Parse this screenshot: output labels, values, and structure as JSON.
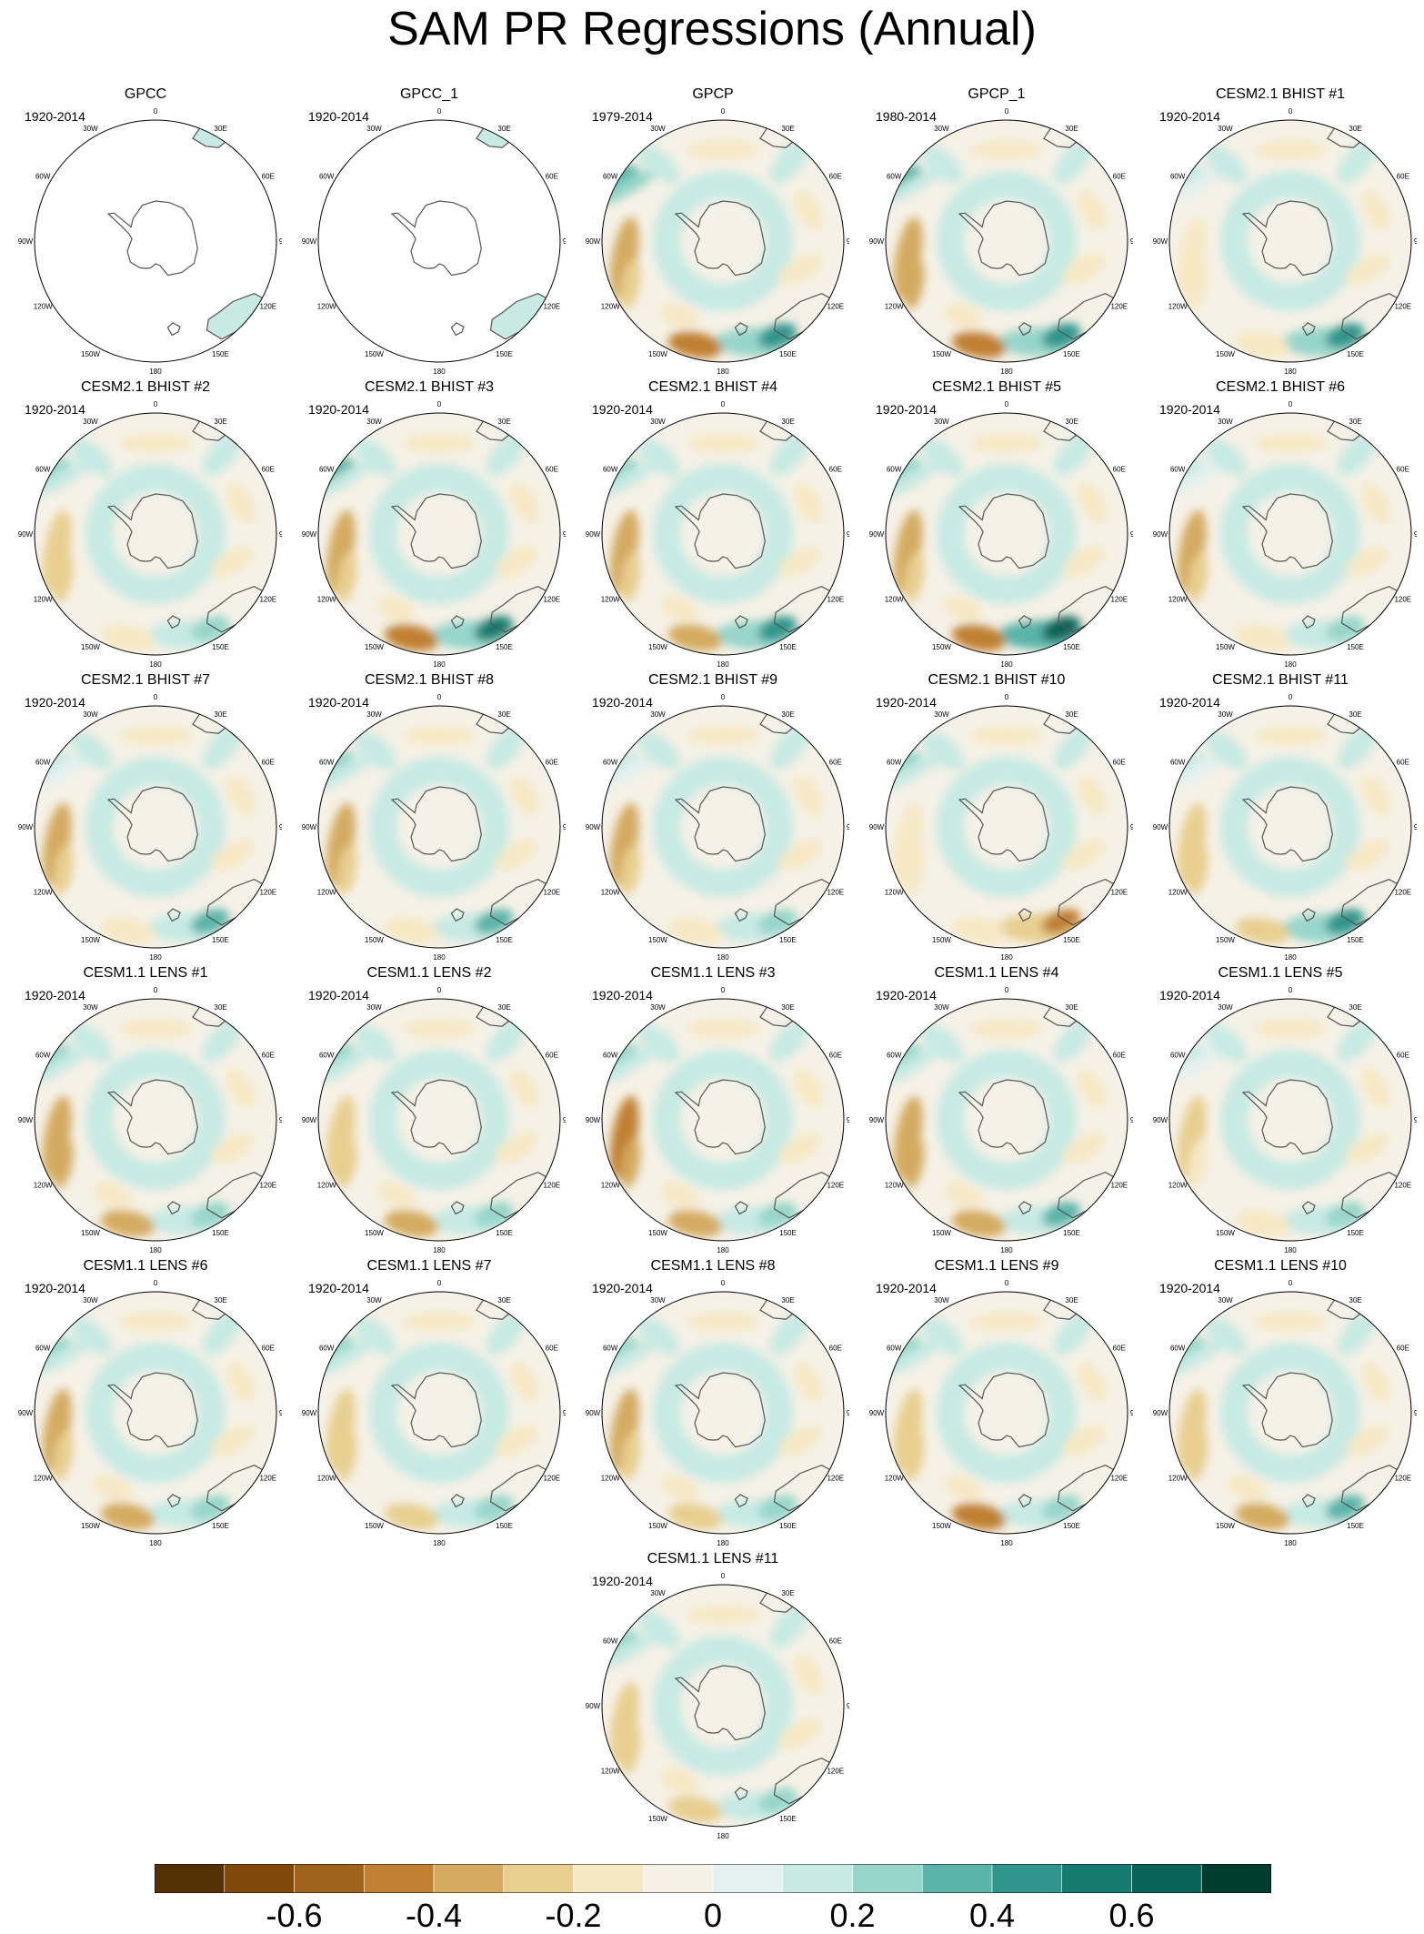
{
  "title": "SAM PR Regressions (Annual)",
  "map": {
    "projection": "south-polar-stereographic",
    "longitude_labels": [
      "0",
      "30E",
      "60E",
      "90E",
      "120E",
      "150E",
      "180",
      "150W",
      "120W",
      "90W",
      "60W",
      "30W"
    ]
  },
  "panels": [
    {
      "name": "GPCC",
      "period": "1920-2014",
      "coverage": "land-only",
      "pattern": {
        "pen": 0.45,
        "sa": 0.0,
        "nz": 0.0,
        "pac": 0.0
      }
    },
    {
      "name": "GPCC_1",
      "period": "1920-2014",
      "coverage": "land-only",
      "pattern": {
        "pen": 0.35,
        "sa": 0.0,
        "nz": 0.0,
        "pac": 0.0
      }
    },
    {
      "name": "GPCP",
      "period": "1979-2014",
      "coverage": "global",
      "pattern": {
        "pen": 0.35,
        "sa": -0.35,
        "nz": 0.4,
        "pac": -0.45
      }
    },
    {
      "name": "GPCP_1",
      "period": "1980-2014",
      "coverage": "global",
      "pattern": {
        "pen": 0.3,
        "sa": -0.4,
        "nz": 0.4,
        "pac": -0.5
      }
    },
    {
      "name": "CESM2.1 BHIST #1",
      "period": "1920-2014",
      "coverage": "global",
      "pattern": {
        "pen": 0.15,
        "sa": -0.2,
        "nz": 0.45,
        "pac": -0.2
      }
    },
    {
      "name": "CESM2.1 BHIST #2",
      "period": "1920-2014",
      "coverage": "global",
      "pattern": {
        "pen": 0.2,
        "sa": -0.3,
        "nz": 0.25,
        "pac": -0.15
      }
    },
    {
      "name": "CESM2.1 BHIST #3",
      "period": "1920-2014",
      "coverage": "global",
      "pattern": {
        "pen": 0.3,
        "sa": -0.35,
        "nz": 0.5,
        "pac": -0.45
      }
    },
    {
      "name": "CESM2.1 BHIST #4",
      "period": "1920-2014",
      "coverage": "global",
      "pattern": {
        "pen": 0.2,
        "sa": -0.35,
        "nz": 0.45,
        "pac": -0.4
      }
    },
    {
      "name": "CESM2.1 BHIST #5",
      "period": "1920-2014",
      "coverage": "global",
      "pattern": {
        "pen": 0.2,
        "sa": -0.35,
        "nz": 0.6,
        "pac": -0.45
      }
    },
    {
      "name": "CESM2.1 BHIST #6",
      "period": "1920-2014",
      "coverage": "global",
      "pattern": {
        "pen": 0.15,
        "sa": -0.35,
        "nz": 0.2,
        "pac": -0.2
      }
    },
    {
      "name": "CESM2.1 BHIST #7",
      "period": "1920-2014",
      "coverage": "global",
      "pattern": {
        "pen": 0.15,
        "sa": -0.35,
        "nz": 0.3,
        "pac": -0.2
      }
    },
    {
      "name": "CESM2.1 BHIST #8",
      "period": "1920-2014",
      "coverage": "global",
      "pattern": {
        "pen": 0.2,
        "sa": -0.35,
        "nz": 0.3,
        "pac": -0.2
      }
    },
    {
      "name": "CESM2.1 BHIST #9",
      "period": "1920-2014",
      "coverage": "global",
      "pattern": {
        "pen": 0.15,
        "sa": -0.35,
        "nz": 0.2,
        "pac": -0.15
      }
    },
    {
      "name": "CESM2.1 BHIST #10",
      "period": "1920-2014",
      "coverage": "global",
      "pattern": {
        "pen": 0.2,
        "sa": -0.2,
        "nz": -0.45,
        "pac": -0.15
      }
    },
    {
      "name": "CESM2.1 BHIST #11",
      "period": "1920-2014",
      "coverage": "global",
      "pattern": {
        "pen": 0.15,
        "sa": -0.3,
        "nz": 0.45,
        "pac": -0.25
      }
    },
    {
      "name": "CESM1.1 LENS #1",
      "period": "1920-2014",
      "coverage": "global",
      "pattern": {
        "pen": 0.2,
        "sa": -0.4,
        "nz": 0.25,
        "pac": -0.35
      }
    },
    {
      "name": "CESM1.1 LENS #2",
      "period": "1920-2014",
      "coverage": "global",
      "pattern": {
        "pen": 0.2,
        "sa": -0.3,
        "nz": 0.25,
        "pac": -0.35
      }
    },
    {
      "name": "CESM1.1 LENS #3",
      "period": "1920-2014",
      "coverage": "global",
      "pattern": {
        "pen": 0.25,
        "sa": -0.5,
        "nz": 0.25,
        "pac": -0.4
      }
    },
    {
      "name": "CESM1.1 LENS #4",
      "period": "1920-2014",
      "coverage": "global",
      "pattern": {
        "pen": 0.2,
        "sa": -0.4,
        "nz": 0.3,
        "pac": -0.4
      }
    },
    {
      "name": "CESM1.1 LENS #5",
      "period": "1920-2014",
      "coverage": "global",
      "pattern": {
        "pen": 0.15,
        "sa": -0.25,
        "nz": 0.25,
        "pac": -0.2
      }
    },
    {
      "name": "CESM1.1 LENS #6",
      "period": "1920-2014",
      "coverage": "global",
      "pattern": {
        "pen": 0.2,
        "sa": -0.35,
        "nz": 0.25,
        "pac": -0.4
      }
    },
    {
      "name": "CESM1.1 LENS #7",
      "period": "1920-2014",
      "coverage": "global",
      "pattern": {
        "pen": 0.2,
        "sa": -0.3,
        "nz": 0.2,
        "pac": -0.25
      }
    },
    {
      "name": "CESM1.1 LENS #8",
      "period": "1920-2014",
      "coverage": "global",
      "pattern": {
        "pen": 0.25,
        "sa": -0.35,
        "nz": 0.25,
        "pac": -0.3
      }
    },
    {
      "name": "CESM1.1 LENS #9",
      "period": "1920-2014",
      "coverage": "global",
      "pattern": {
        "pen": 0.25,
        "sa": -0.3,
        "nz": 0.25,
        "pac": -0.45
      }
    },
    {
      "name": "CESM1.1 LENS #10",
      "period": "1920-2014",
      "coverage": "global",
      "pattern": {
        "pen": 0.2,
        "sa": -0.3,
        "nz": 0.35,
        "pac": -0.4
      }
    },
    {
      "name": "CESM1.1 LENS #11",
      "period": "1920-2014",
      "coverage": "global",
      "pattern": {
        "pen": 0.25,
        "sa": -0.3,
        "nz": 0.25,
        "pac": -0.3
      }
    }
  ],
  "colorbar": {
    "levels": [
      -0.8,
      -0.7,
      -0.6,
      -0.5,
      -0.4,
      -0.3,
      -0.2,
      -0.1,
      0,
      0.1,
      0.2,
      0.3,
      0.4,
      0.5,
      0.6,
      0.7,
      0.8
    ],
    "colors": [
      "#543005",
      "#7f470a",
      "#a0631e",
      "#c08030",
      "#d4aa60",
      "#e8cf90",
      "#f6e8c3",
      "#f5f1e6",
      "#e4f1ef",
      "#c7eae4",
      "#97d6cb",
      "#5ab4aa",
      "#2f958d",
      "#157a70",
      "#0a6358",
      "#003c30"
    ],
    "tick_labels": [
      "-0.6",
      "-0.4",
      "-0.2",
      "0",
      "0.2",
      "0.4",
      "0.6"
    ],
    "tick_values": [
      -0.6,
      -0.4,
      -0.2,
      0,
      0.2,
      0.4,
      0.6
    ]
  }
}
